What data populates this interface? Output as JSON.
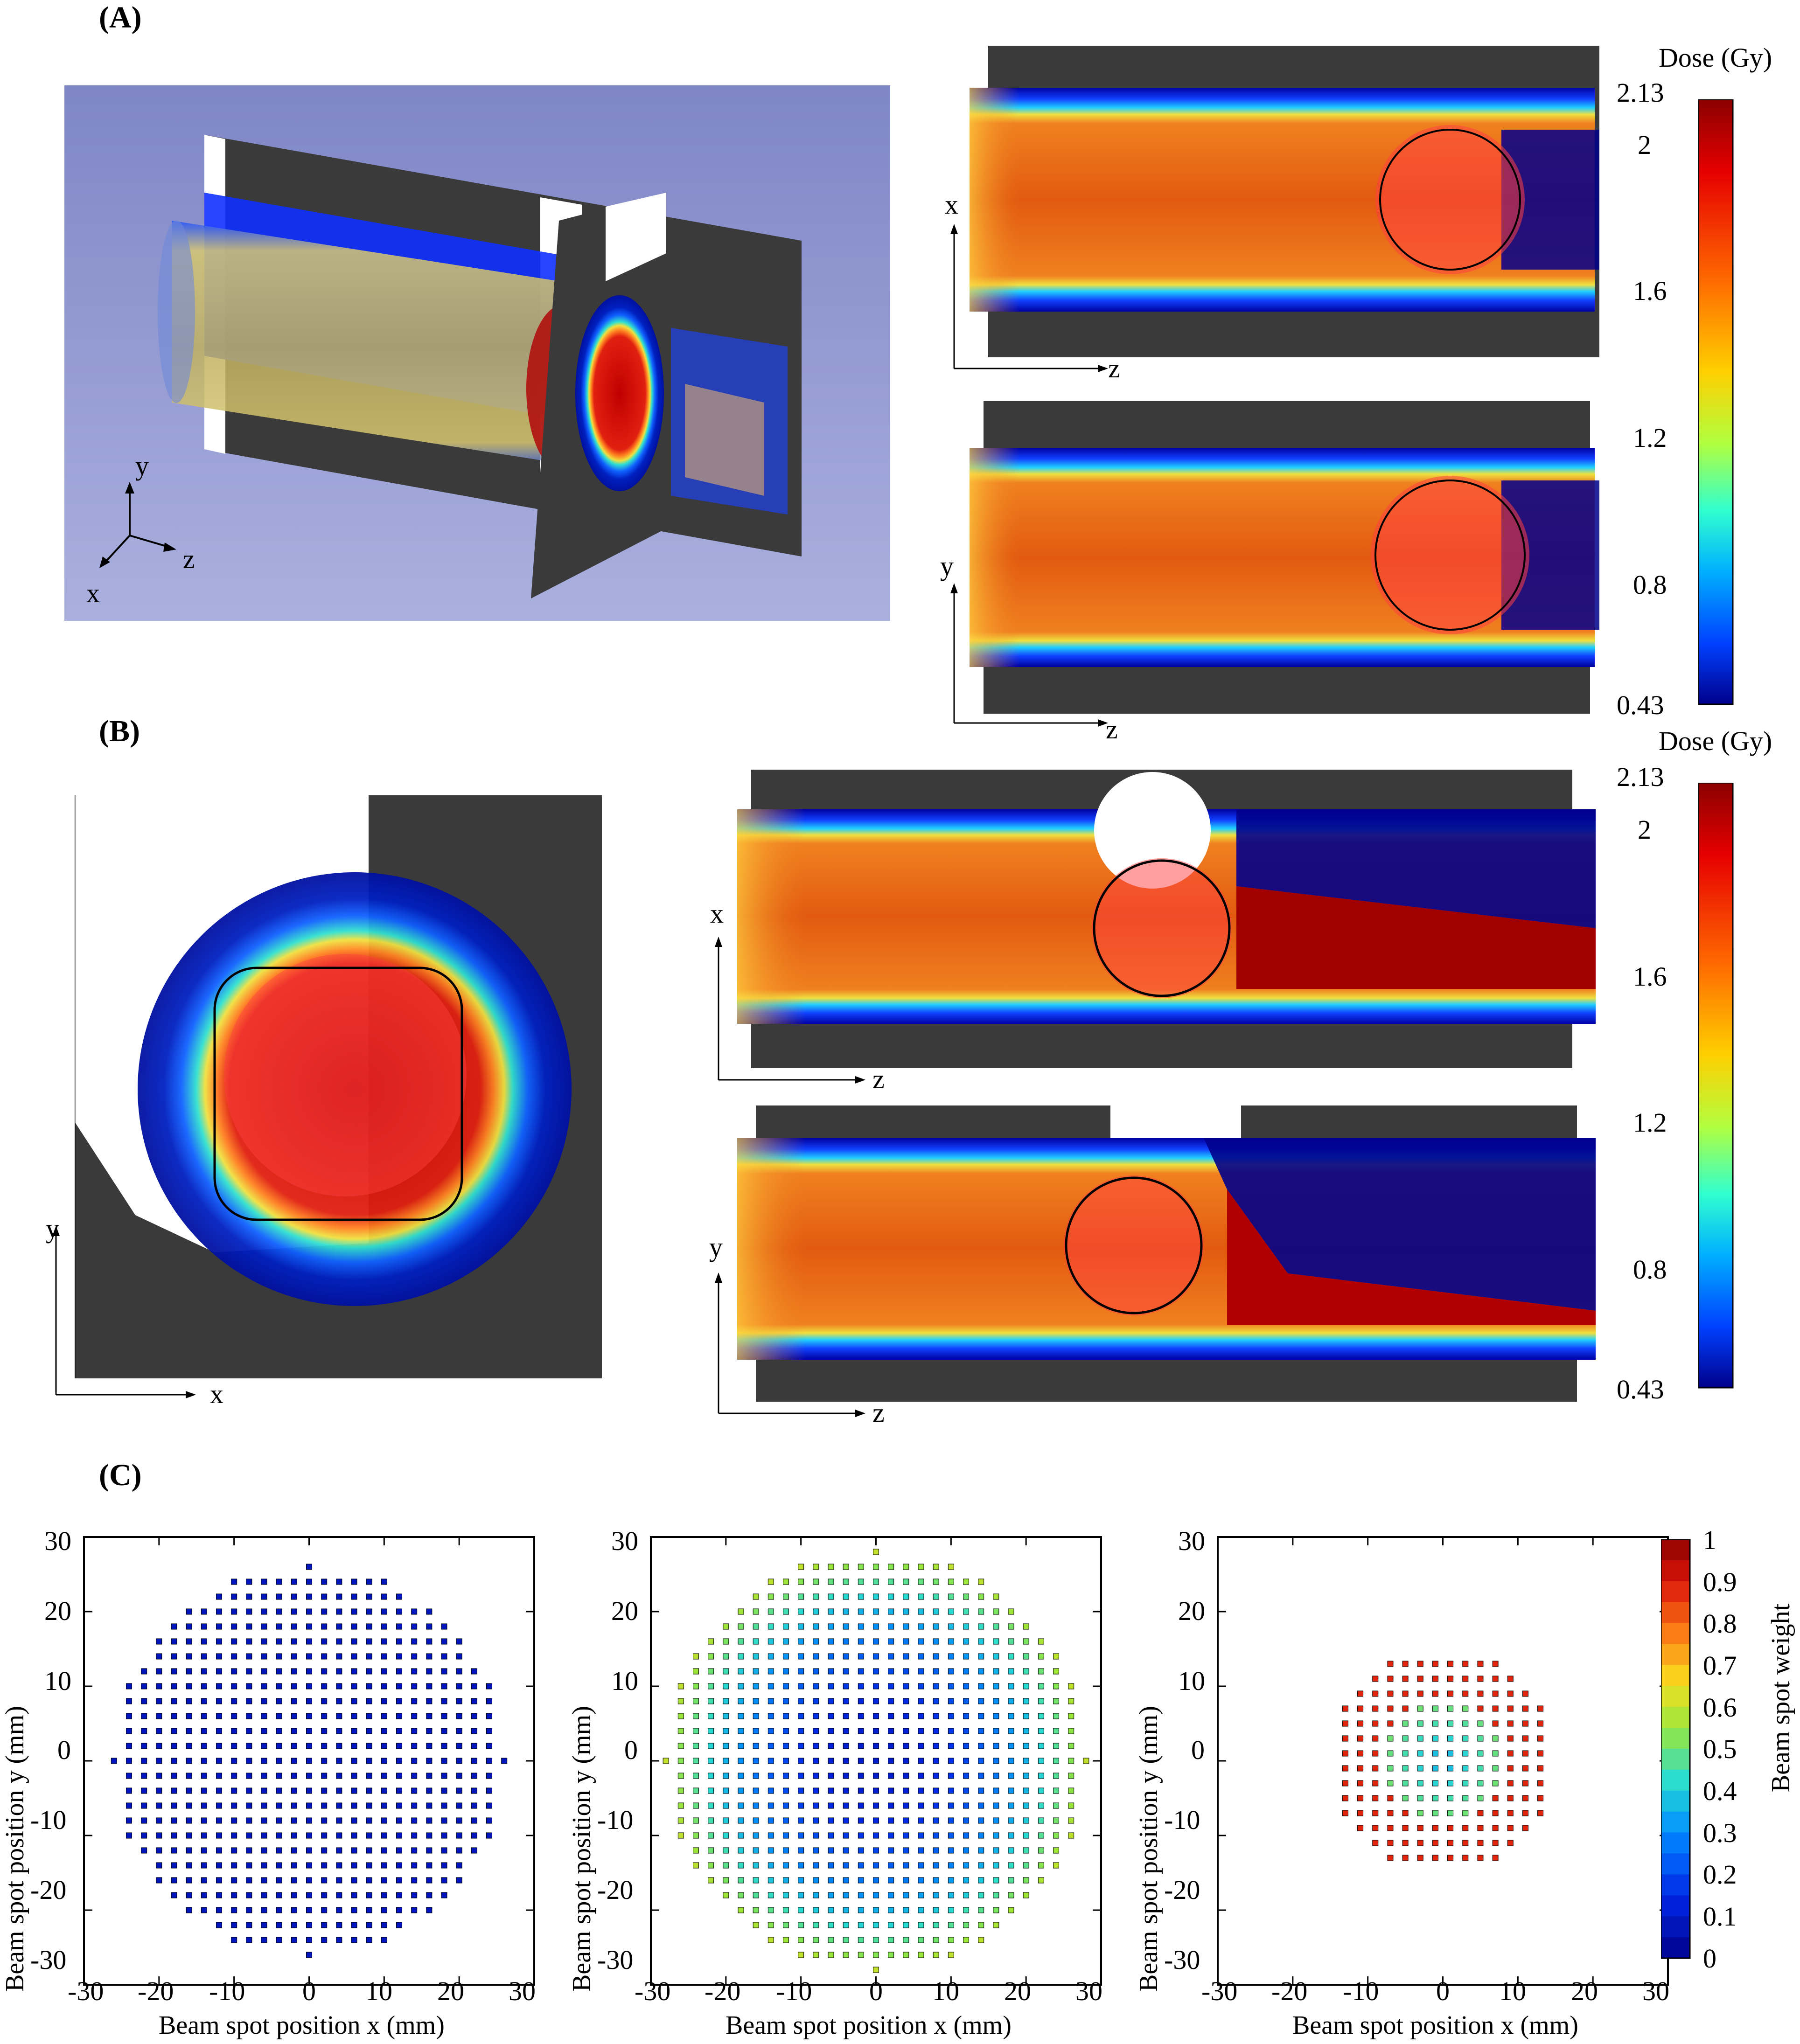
{
  "panels": {
    "A": {
      "label": "(A)"
    },
    "B": {
      "label": "(B)"
    },
    "C": {
      "label": "(C)"
    }
  },
  "axis_letters": {
    "x": "x",
    "y": "y",
    "z": "z"
  },
  "colorbar": {
    "title": "Dose (Gy)",
    "ticks": [
      "2.13",
      "2",
      "1.6",
      "1.2",
      "0.8",
      "0.43"
    ],
    "colors": [
      "#8b0000",
      "#e60000",
      "#ff6a00",
      "#ffd000",
      "#b0ff40",
      "#30ffd0",
      "#00b0ff",
      "#0040ff",
      "#00008b"
    ]
  },
  "chart_data": [
    {
      "type": "scatter",
      "xlabel": "Beam spot position x (mm)",
      "ylabel": "Beam spot position y (mm)",
      "xlim": [
        -30,
        30
      ],
      "ylim": [
        -30,
        30
      ],
      "xticks": [
        "-30",
        "-20",
        "-10",
        "0",
        "10",
        "20",
        "30"
      ],
      "yticks": [
        "30",
        "20",
        "10",
        "0",
        "-10",
        "-20",
        "-30"
      ],
      "spot_region_radius_mm": 26,
      "spot_spacing_mm": 2,
      "weight_level": 0.08
    },
    {
      "type": "scatter",
      "xlabel": "Beam spot position x (mm)",
      "ylabel": "Beam spot position y (mm)",
      "xlim": [
        -30,
        30
      ],
      "ylim": [
        -30,
        30
      ],
      "xticks": [
        "-30",
        "-20",
        "-10",
        "0",
        "10",
        "20",
        "30"
      ],
      "yticks": [
        "30",
        "20",
        "10",
        "0",
        "-10",
        "-20",
        "-30"
      ],
      "spot_region_radius_mm": 28,
      "spot_spacing_mm": 2,
      "weight_level": 0.35
    },
    {
      "type": "scatter",
      "xlabel": "Beam spot position x (mm)",
      "ylabel": "Beam spot position y (mm)",
      "xlim": [
        -30,
        30
      ],
      "ylim": [
        -30,
        30
      ],
      "xticks": [
        "-30",
        "-20",
        "-10",
        "0",
        "10",
        "20",
        "30"
      ],
      "yticks": [
        "30",
        "20",
        "10",
        "0",
        "-10",
        "-20",
        "-30"
      ],
      "spot_region_radius_mm": 15,
      "spot_spacing_mm": 2,
      "weight_level": 0.85,
      "colorbar": {
        "title": "Beam spot weight",
        "range": [
          0,
          1
        ],
        "ticks": [
          "1",
          "0.9",
          "0.8",
          "0.7",
          "0.6",
          "0.5",
          "0.4",
          "0.3",
          "0.2",
          "0.1",
          "0"
        ]
      }
    }
  ]
}
